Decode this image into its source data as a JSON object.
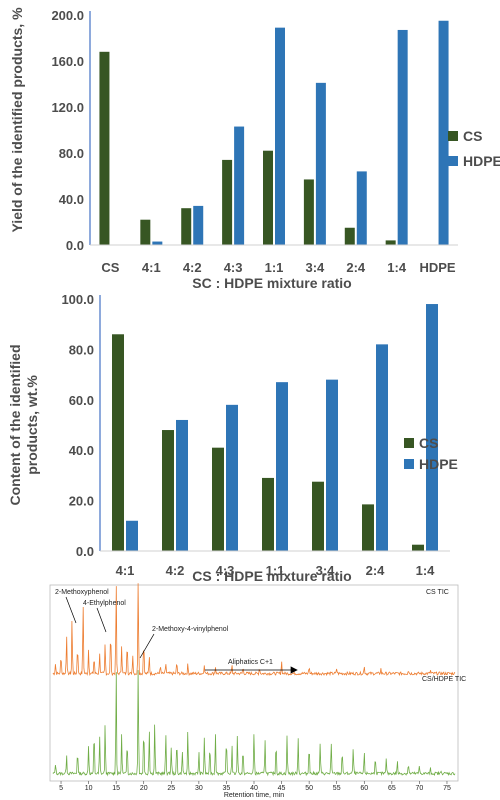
{
  "colors": {
    "cs": "#375623",
    "hdpe": "#2e75b6",
    "axis": "#4472c4",
    "tic_cs": "#ed7d31",
    "tic_mix": "#70ad47"
  },
  "chart_data": [
    {
      "type": "bar",
      "ylabel": "Yield of the identified products, %",
      "xlabel": "SC : HDPE mixture ratio",
      "ylim": [
        0,
        200
      ],
      "yticks": [
        "0.0",
        "40.0",
        "80.0",
        "120.0",
        "160.0",
        "200.0"
      ],
      "categories": [
        "CS",
        "4:1",
        "4:2",
        "4:3",
        "1:1",
        "3:4",
        "2:4",
        "1:4",
        "HDPE"
      ],
      "series": [
        {
          "name": "CS",
          "values": [
            168,
            22,
            32,
            74,
            82,
            57,
            15,
            4,
            null
          ]
        },
        {
          "name": "HDPE",
          "values": [
            null,
            3,
            34,
            103,
            189,
            141,
            64,
            187,
            195
          ]
        }
      ],
      "legend": "right"
    },
    {
      "type": "bar",
      "ylabel": "Content of the identified products, wt.%",
      "xlabel": "CS : HDPE mixture ratio",
      "ylim": [
        0,
        100
      ],
      "yticks": [
        "0.0",
        "20.0",
        "40.0",
        "60.0",
        "80.0",
        "100.0"
      ],
      "categories": [
        "4:1",
        "4:2",
        "4:3",
        "1:1",
        "3:4",
        "2:4",
        "1:4"
      ],
      "series": [
        {
          "name": "CS",
          "values": [
            86,
            48,
            41,
            29,
            27.5,
            18.5,
            2.5
          ]
        },
        {
          "name": "HDPE",
          "values": [
            12,
            52,
            58,
            67,
            68,
            82,
            98
          ]
        }
      ],
      "legend": "right"
    },
    {
      "type": "line",
      "xlabel": "Retention time, min",
      "xlim": [
        3,
        77
      ],
      "xticks": [
        "5",
        "10",
        "15",
        "20",
        "25",
        "30",
        "35",
        "40",
        "45",
        "50",
        "55",
        "60",
        "65",
        "70",
        "75"
      ],
      "traces": [
        {
          "name": "CS TIC"
        },
        {
          "name": "CS/HDPE TIC"
        }
      ],
      "annotations": [
        {
          "text": "2-Methoxyphenol",
          "x": 9
        },
        {
          "text": "4-Ethylphenol",
          "x": 15
        },
        {
          "text": "2-Methoxy-4-vinylphenol",
          "x": 20
        },
        {
          "text": "Aliphatics C+1",
          "x": 40
        }
      ]
    }
  ]
}
